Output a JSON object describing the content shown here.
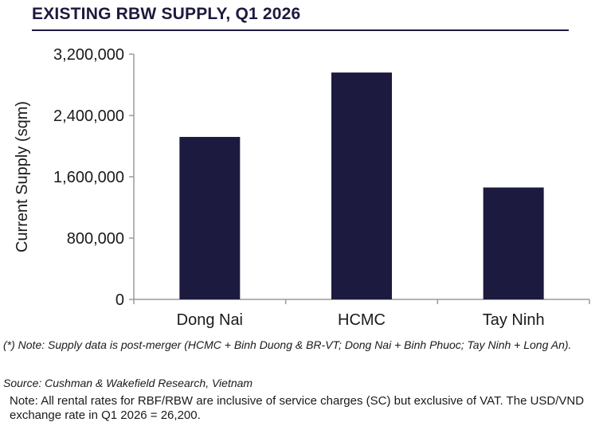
{
  "header": {
    "title": "EXISTING RBW SUPPLY, Q1 2026"
  },
  "chart_data": {
    "type": "bar",
    "categories": [
      "Dong Nai",
      "HCMC",
      "Tay Ninh"
    ],
    "values": [
      2120000,
      2960000,
      1460000
    ],
    "title": "EXISTING RBW SUPPLY, Q1 2026",
    "xlabel": "",
    "ylabel": "Current Supply (sqm)",
    "ylim": [
      0,
      3200000
    ],
    "yticks": [
      0,
      800000,
      1600000,
      2400000,
      3200000
    ],
    "ytick_labels": [
      "0",
      "800,000",
      "1,600,000",
      "2,400,000",
      "3,200,000"
    ],
    "grid": false,
    "legend": "none",
    "bar_color": "#1c1a3e"
  },
  "notes": {
    "supply_note": "(*) Note: Supply data is post-merger (HCMC + Binh Duong & BR-VT; Dong Nai + Binh Phuoc; Tay Ninh + Long An).",
    "source": "Source: Cushman & Wakefield Research, Vietnam",
    "rates_note": "Note: All rental rates for RBF/RBW are inclusive of service charges (SC) but exclusive of VAT. The USD/VND exchange rate in Q1 2026 = 26,200."
  }
}
